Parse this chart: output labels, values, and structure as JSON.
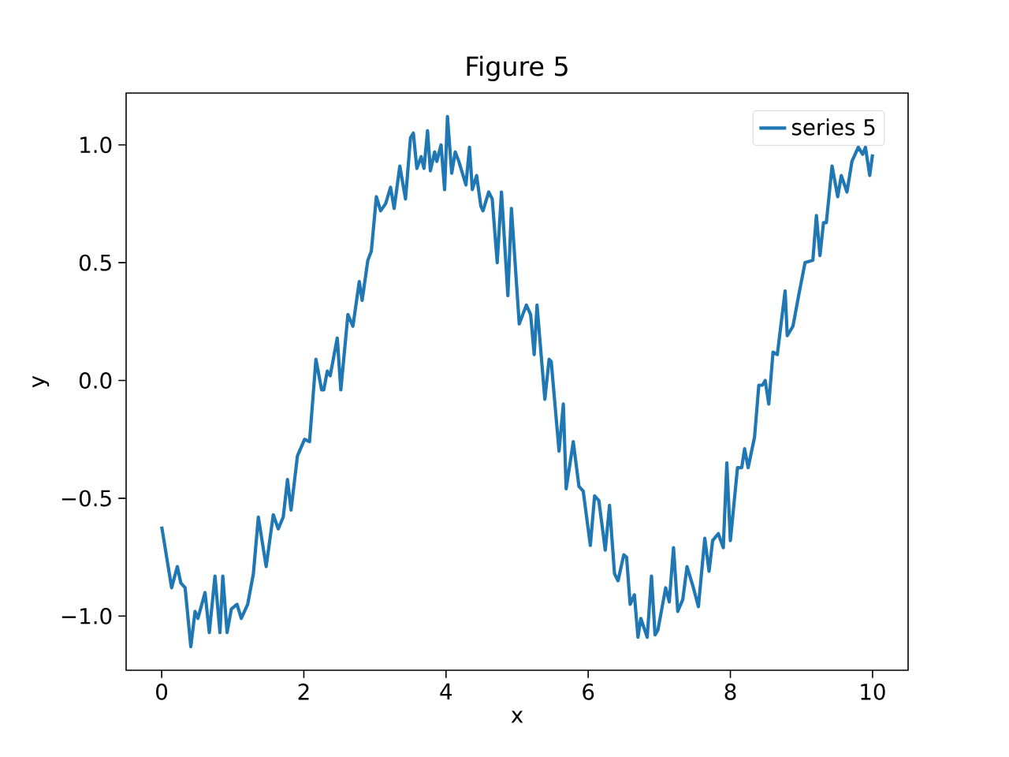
{
  "chart_data": {
    "type": "line",
    "title": "Figure 5",
    "xlabel": "x",
    "ylabel": "y",
    "x": [
      0.0,
      0.14,
      0.22,
      0.27,
      0.33,
      0.41,
      0.47,
      0.51,
      0.61,
      0.67,
      0.75,
      0.82,
      0.86,
      0.92,
      0.98,
      1.06,
      1.12,
      1.21,
      1.29,
      1.36,
      1.47,
      1.57,
      1.64,
      1.71,
      1.77,
      1.82,
      1.91,
      2.01,
      2.08,
      2.17,
      2.25,
      2.28,
      2.33,
      2.37,
      2.47,
      2.52,
      2.62,
      2.69,
      2.78,
      2.82,
      2.9,
      2.95,
      3.02,
      3.08,
      3.15,
      3.22,
      3.27,
      3.35,
      3.43,
      3.5,
      3.54,
      3.59,
      3.65,
      3.69,
      3.74,
      3.78,
      3.84,
      3.87,
      3.93,
      3.98,
      4.02,
      4.08,
      4.13,
      4.18,
      4.28,
      4.33,
      4.37,
      4.43,
      4.49,
      4.52,
      4.6,
      4.65,
      4.72,
      4.78,
      4.87,
      4.92,
      5.03,
      5.13,
      5.19,
      5.24,
      5.28,
      5.39,
      5.45,
      5.48,
      5.59,
      5.65,
      5.69,
      5.79,
      5.87,
      5.93,
      6.03,
      6.09,
      6.15,
      6.24,
      6.3,
      6.37,
      6.42,
      6.5,
      6.54,
      6.59,
      6.65,
      6.7,
      6.74,
      6.83,
      6.89,
      6.94,
      6.98,
      7.09,
      7.14,
      7.2,
      7.26,
      7.33,
      7.39,
      7.48,
      7.55,
      7.64,
      7.7,
      7.75,
      7.83,
      7.9,
      7.95,
      8.0,
      8.1,
      8.16,
      8.2,
      8.25,
      8.34,
      8.4,
      8.45,
      8.49,
      8.54,
      8.6,
      8.66,
      8.77,
      8.8,
      8.88,
      8.96,
      9.05,
      9.16,
      9.21,
      9.26,
      9.31,
      9.35,
      9.43,
      9.51,
      9.56,
      9.64,
      9.71,
      9.8,
      9.86,
      9.9,
      9.96,
      10.0
    ],
    "series": [
      {
        "name": "series 5",
        "color": "#1f77b4",
        "values": [
          -0.62,
          -0.88,
          -0.79,
          -0.86,
          -0.88,
          -1.13,
          -0.98,
          -1.01,
          -0.9,
          -1.07,
          -0.83,
          -1.07,
          -0.83,
          -1.07,
          -0.97,
          -0.95,
          -1.01,
          -0.95,
          -0.82,
          -0.58,
          -0.79,
          -0.57,
          -0.63,
          -0.58,
          -0.42,
          -0.55,
          -0.32,
          -0.25,
          -0.26,
          0.09,
          -0.04,
          -0.04,
          0.04,
          0.02,
          0.18,
          -0.04,
          0.28,
          0.23,
          0.42,
          0.34,
          0.51,
          0.55,
          0.78,
          0.72,
          0.75,
          0.82,
          0.73,
          0.91,
          0.77,
          1.03,
          1.05,
          0.9,
          0.95,
          0.9,
          1.06,
          0.89,
          0.97,
          0.93,
          1.0,
          0.81,
          1.12,
          0.88,
          0.97,
          0.93,
          0.83,
          0.99,
          0.81,
          0.87,
          0.74,
          0.72,
          0.8,
          0.77,
          0.5,
          0.8,
          0.36,
          0.73,
          0.24,
          0.32,
          0.28,
          0.11,
          0.32,
          -0.08,
          0.09,
          0.08,
          -0.3,
          -0.1,
          -0.46,
          -0.26,
          -0.45,
          -0.47,
          -0.7,
          -0.49,
          -0.51,
          -0.72,
          -0.53,
          -0.82,
          -0.85,
          -0.74,
          -0.75,
          -0.95,
          -0.91,
          -1.09,
          -1.01,
          -1.09,
          -0.83,
          -1.08,
          -1.06,
          -0.88,
          -0.94,
          -0.71,
          -0.98,
          -0.93,
          -0.79,
          -0.88,
          -0.96,
          -0.67,
          -0.81,
          -0.68,
          -0.65,
          -0.71,
          -0.35,
          -0.68,
          -0.37,
          -0.37,
          -0.29,
          -0.37,
          -0.24,
          -0.02,
          -0.02,
          0.0,
          -0.1,
          0.12,
          0.11,
          0.38,
          0.19,
          0.23,
          0.36,
          0.5,
          0.51,
          0.7,
          0.53,
          0.67,
          0.67,
          0.91,
          0.78,
          0.87,
          0.8,
          0.93,
          0.99,
          0.96,
          0.99,
          0.87,
          0.96
        ]
      }
    ],
    "xlim": [
      -0.5,
      10.5
    ],
    "ylim": [
      -1.23,
      1.22
    ],
    "xticks": [
      0,
      2,
      4,
      6,
      8,
      10
    ],
    "yticks": [
      {
        "value": -1.0,
        "label": "−1.0"
      },
      {
        "value": -0.5,
        "label": "−0.5"
      },
      {
        "value": 0.0,
        "label": "0.0"
      },
      {
        "value": 0.5,
        "label": "0.5"
      },
      {
        "value": 1.0,
        "label": "1.0"
      }
    ],
    "legend": "top right",
    "marker": "none",
    "line_style": "solid"
  }
}
